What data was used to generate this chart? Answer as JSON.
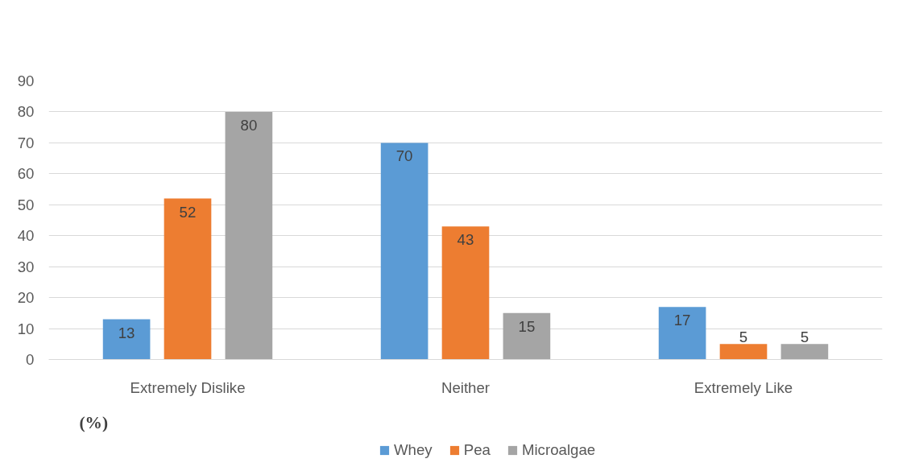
{
  "chart_data": {
    "type": "bar",
    "categories": [
      "Extremely Dislike",
      "Neither",
      "Extremely Like"
    ],
    "series": [
      {
        "name": "Whey",
        "color": "#5b9bd5",
        "values": [
          13,
          70,
          17
        ]
      },
      {
        "name": "Pea",
        "color": "#ed7d31",
        "values": [
          52,
          43,
          5
        ]
      },
      {
        "name": "Microalgae",
        "color": "#a5a5a5",
        "values": [
          80,
          15,
          5
        ]
      }
    ],
    "ylim": [
      0,
      90
    ],
    "yticks": [
      0,
      10,
      20,
      30,
      40,
      50,
      60,
      70,
      80,
      90
    ],
    "grid": "y",
    "legend": "bottom",
    "data_labels": true,
    "annotations": [
      "(%)"
    ]
  }
}
